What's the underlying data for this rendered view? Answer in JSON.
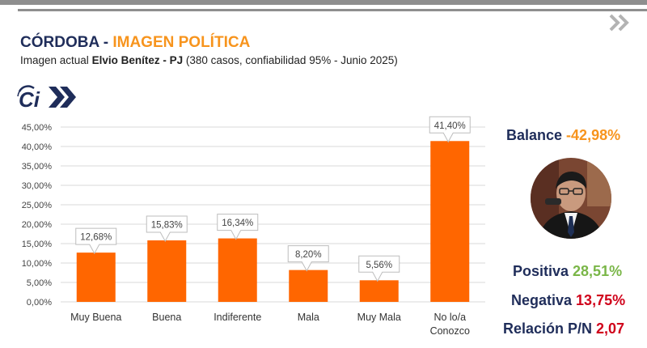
{
  "header": {
    "title_part1": "CÓRDOBA - ",
    "title_part2": "IMAGEN POLÍTICA",
    "subtitle_pre": "Imagen actual ",
    "subtitle_name": "Elvio Benítez - PJ",
    "subtitle_post": " (380 casos, confiabilidad 95% - Junio 2025)"
  },
  "logo": {
    "text": "Ci"
  },
  "icons": {
    "next": "double-chevron-right-icon",
    "logo": "ci-logo-icon",
    "photo": "politician-portrait"
  },
  "colors": {
    "bar": "#ff6600",
    "navy": "#1f2d5a",
    "orange": "#f7941d",
    "green": "#7ab648",
    "red": "#d0021b",
    "grid": "#d9d9d9"
  },
  "chart_data": {
    "type": "bar",
    "categories": [
      "Muy Buena",
      "Buena",
      "Indiferente",
      "Mala",
      "Muy Mala",
      "No lo/a Conozco"
    ],
    "values": [
      12.68,
      15.83,
      16.34,
      8.2,
      5.56,
      41.4
    ],
    "data_labels": [
      "12,68%",
      "15,83%",
      "16,34%",
      "8,20%",
      "5,56%",
      "41,40%"
    ],
    "ylim": [
      0,
      45
    ],
    "yticks": [
      0,
      5,
      10,
      15,
      20,
      25,
      30,
      35,
      40,
      45
    ],
    "ytick_labels": [
      "0,00%",
      "5,00%",
      "10,00%",
      "15,00%",
      "20,00%",
      "25,00%",
      "30,00%",
      "35,00%",
      "40,00%",
      "45,00%"
    ],
    "grid": true,
    "legend": false
  },
  "stats": {
    "balance_label": "Balance ",
    "balance_value": "-42,98%",
    "positiva_label": "Positiva ",
    "positiva_value": "28,51%",
    "negativa_label": "Negativa ",
    "negativa_value": "13,75%",
    "relacion_label": "Relación P/N ",
    "relacion_value": "2,07"
  }
}
